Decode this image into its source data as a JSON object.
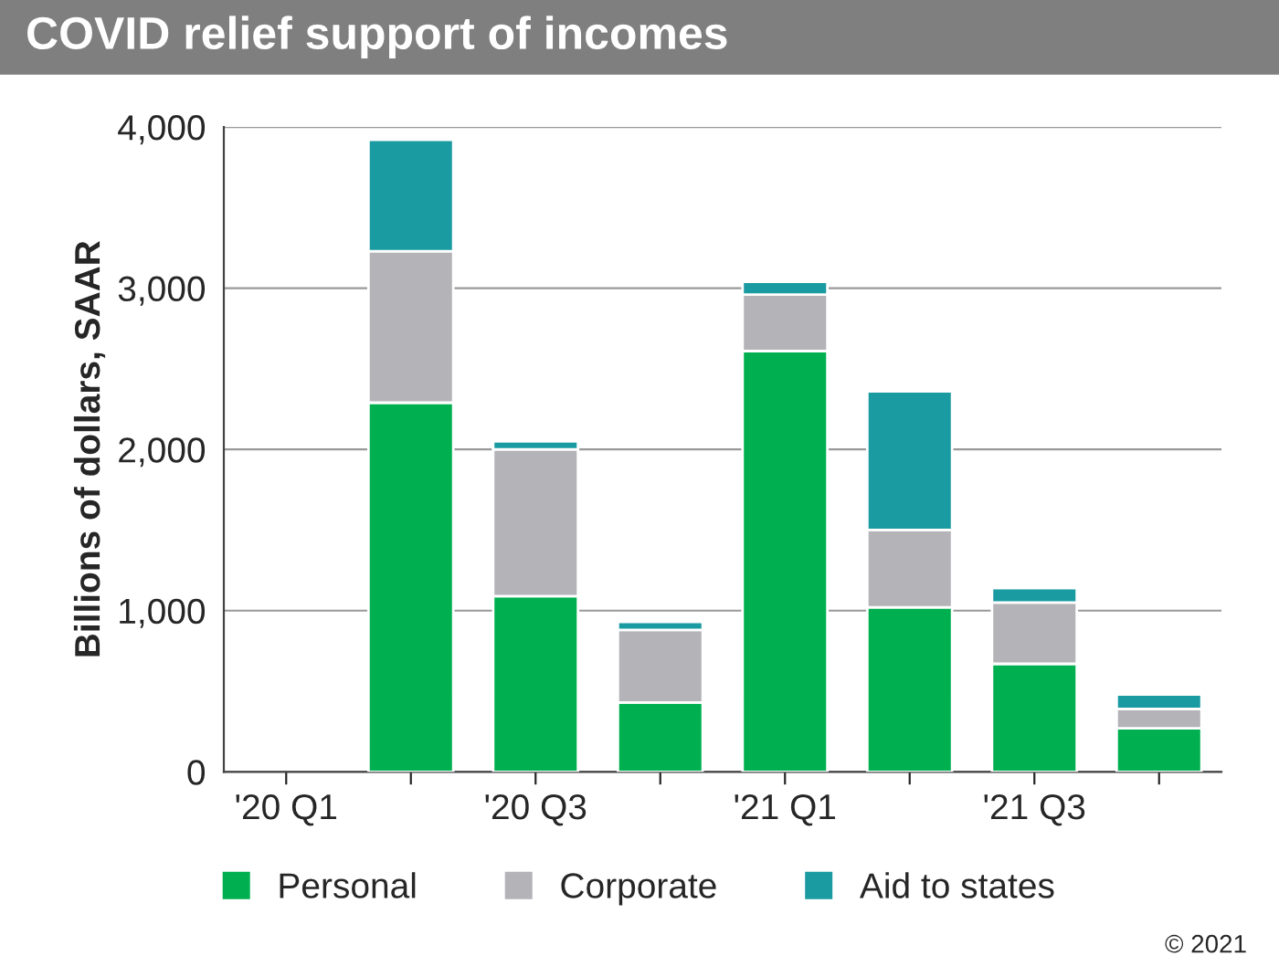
{
  "chart_data": {
    "type": "bar",
    "title": "COVID relief support of incomes",
    "ylabel": "Billions of dollars, SAAR",
    "categories": [
      "'20 Q1",
      null,
      "'20 Q3",
      null,
      "'21 Q1",
      null,
      "'21 Q3",
      null
    ],
    "stacked": true,
    "series": [
      {
        "name": "Personal",
        "color": "#00b050",
        "values": [
          null,
          2290,
          1090,
          430,
          2610,
          1020,
          670,
          270
        ]
      },
      {
        "name": "Corporate",
        "color": "#b3b3b8",
        "values": [
          null,
          940,
          910,
          450,
          350,
          480,
          380,
          120
        ]
      },
      {
        "name": "Aid to states",
        "color": "#1a9ba1",
        "values": [
          null,
          690,
          50,
          50,
          80,
          860,
          90,
          90
        ]
      }
    ],
    "ylim": [
      0,
      4000
    ],
    "yticks": [
      0,
      {
        "value": 1000,
        "label": "1,000"
      },
      {
        "value": 2000,
        "label": "2,000"
      },
      {
        "value": 3000,
        "label": "3,000"
      },
      {
        "value": 4000,
        "label": "4,000"
      }
    ],
    "grid": "y",
    "legend": "bottom",
    "annotations": [
      "© 2021"
    ]
  }
}
